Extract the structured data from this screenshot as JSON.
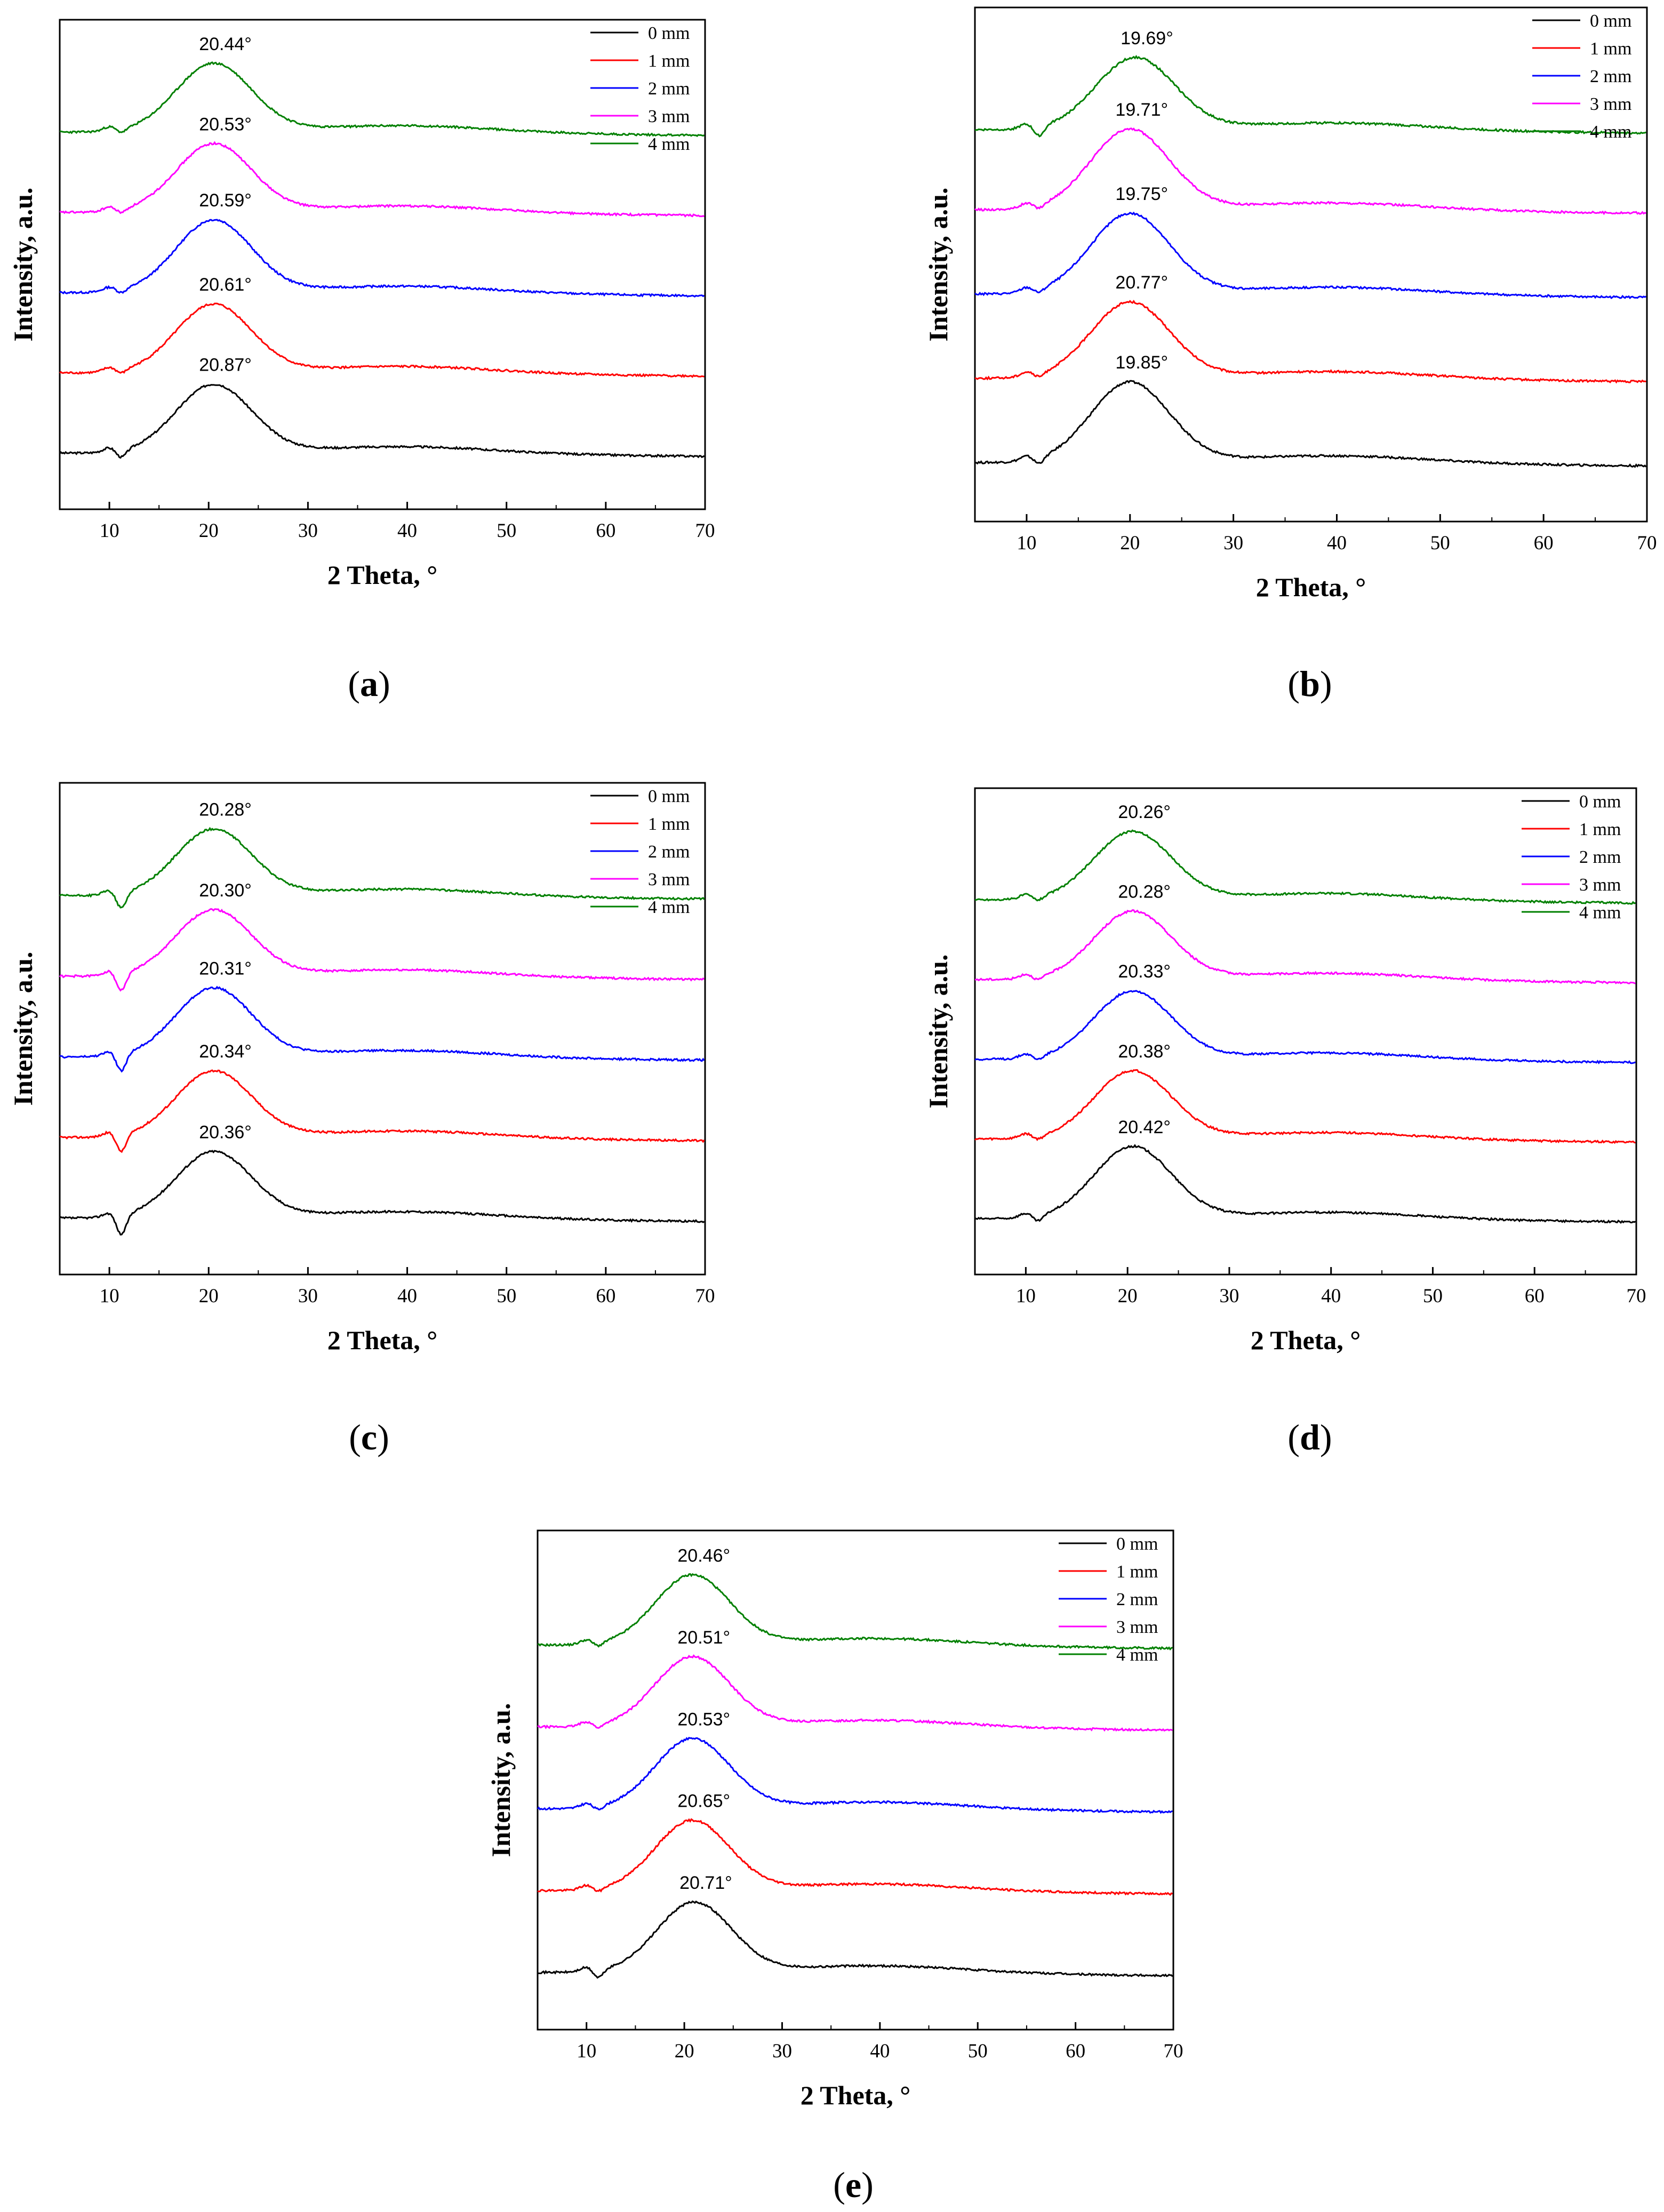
{
  "chart_data": [
    {
      "panel": "(a)",
      "type": "line",
      "xlabel": "2 Theta, °",
      "ylabel": "Intensity, a.u.",
      "xlim": [
        5,
        70
      ],
      "x_ticks": [
        10,
        20,
        30,
        40,
        50,
        60,
        70
      ],
      "legend_position": "top-right",
      "series": [
        {
          "name": "0 mm",
          "color": "#000000",
          "peak_x": 20.5,
          "peak_label": "20.87°",
          "baseline": 1.0,
          "peak_height": 0.85,
          "right_baseline": 1.0,
          "dip": 0.1
        },
        {
          "name": "1 mm",
          "color": "#ff0000",
          "peak_x": 20.5,
          "peak_label": "20.61°",
          "baseline": 2.0,
          "peak_height": 0.85,
          "right_baseline": 2.0,
          "dip": 0.05
        },
        {
          "name": "2 mm",
          "color": "#0000ff",
          "peak_x": 20.5,
          "peak_label": "20.59°",
          "baseline": 3.0,
          "peak_height": 0.9,
          "right_baseline": 3.0,
          "dip": 0.05
        },
        {
          "name": "3 mm",
          "color": "#ff00ff",
          "peak_x": 20.5,
          "peak_label": "20.53°",
          "baseline": 4.0,
          "peak_height": 0.85,
          "right_baseline": 4.0,
          "dip": 0.05
        },
        {
          "name": "4 mm",
          "color": "#008000",
          "peak_x": 20.5,
          "peak_label": "20.44°",
          "baseline": 5.0,
          "peak_height": 0.85,
          "right_baseline": 5.0,
          "dip": 0.05
        }
      ]
    },
    {
      "panel": "(b)",
      "type": "line",
      "xlabel": "2 Theta, °",
      "ylabel": "Intensity, a.u.",
      "xlim": [
        5,
        70
      ],
      "x_ticks": [
        10,
        20,
        30,
        40,
        50,
        60,
        70
      ],
      "legend_position": "top-right",
      "series": [
        {
          "name": "0 mm",
          "color": "#000000",
          "peak_x": 20.0,
          "peak_label": "19.85°",
          "baseline": 1.0,
          "peak_height": 0.95,
          "right_baseline": 1.0,
          "dip": 0.08
        },
        {
          "name": "1 mm",
          "color": "#ff0000",
          "peak_x": 20.0,
          "peak_label": "20.77°",
          "baseline": 2.0,
          "peak_height": 0.9,
          "right_baseline": 2.0,
          "dip": 0.05
        },
        {
          "name": "2 mm",
          "color": "#0000ff",
          "peak_x": 20.0,
          "peak_label": "19.75°",
          "baseline": 3.0,
          "peak_height": 0.95,
          "right_baseline": 3.0,
          "dip": 0.05
        },
        {
          "name": "3 mm",
          "color": "#ff00ff",
          "peak_x": 20.0,
          "peak_label": "19.71°",
          "baseline": 4.0,
          "peak_height": 0.95,
          "right_baseline": 4.0,
          "dip": 0.05
        },
        {
          "name": "4 mm",
          "color": "#008000",
          "peak_x": 20.5,
          "peak_label": "19.69°",
          "baseline": 4.95,
          "peak_height": 0.85,
          "right_baseline": 4.95,
          "dip": 0.12
        }
      ]
    },
    {
      "panel": "(c)",
      "type": "line",
      "xlabel": "2 Theta, °",
      "ylabel": "Intensity, a.u.",
      "xlim": [
        5,
        70
      ],
      "x_ticks": [
        10,
        20,
        30,
        40,
        50,
        60,
        70
      ],
      "legend_position": "top-right",
      "series": [
        {
          "name": "0 mm",
          "color": "#000000",
          "peak_x": 20.5,
          "peak_label": "20.36°",
          "baseline": 1.0,
          "peak_height": 0.82,
          "right_baseline": 1.0,
          "dip": 0.25
        },
        {
          "name": "1 mm",
          "color": "#ff0000",
          "peak_x": 20.5,
          "peak_label": "20.34°",
          "baseline": 2.0,
          "peak_height": 0.82,
          "right_baseline": 2.0,
          "dip": 0.22
        },
        {
          "name": "2 mm",
          "color": "#0000ff",
          "peak_x": 20.5,
          "peak_label": "20.31°",
          "baseline": 3.0,
          "peak_height": 0.85,
          "right_baseline": 3.0,
          "dip": 0.22
        },
        {
          "name": "3 mm",
          "color": "#ff00ff",
          "peak_x": 20.5,
          "peak_label": "20.30°",
          "baseline": 4.0,
          "peak_height": 0.82,
          "right_baseline": 4.0,
          "dip": 0.22
        },
        {
          "name": "4 mm",
          "color": "#008000",
          "peak_x": 20.5,
          "peak_label": "20.28°",
          "baseline": 5.0,
          "peak_height": 0.82,
          "right_baseline": 5.0,
          "dip": 0.2
        }
      ]
    },
    {
      "panel": "(d)",
      "type": "line",
      "xlabel": "2 Theta, °",
      "ylabel": "Intensity, a.u.",
      "xlim": [
        5,
        70
      ],
      "x_ticks": [
        10,
        20,
        30,
        40,
        50,
        60,
        70
      ],
      "legend_position": "top-right",
      "series": [
        {
          "name": "0 mm",
          "color": "#000000",
          "peak_x": 20.5,
          "peak_label": "20.42°",
          "baseline": 1.0,
          "peak_height": 0.9,
          "right_baseline": 1.0,
          "dip": 0.08
        },
        {
          "name": "1 mm",
          "color": "#ff0000",
          "peak_x": 20.5,
          "peak_label": "20.38°",
          "baseline": 2.0,
          "peak_height": 0.85,
          "right_baseline": 2.0,
          "dip": 0.05
        },
        {
          "name": "2 mm",
          "color": "#0000ff",
          "peak_x": 20.5,
          "peak_label": "20.33°",
          "baseline": 3.0,
          "peak_height": 0.85,
          "right_baseline": 3.0,
          "dip": 0.05
        },
        {
          "name": "3 mm",
          "color": "#ff00ff",
          "peak_x": 20.5,
          "peak_label": "20.28°",
          "baseline": 4.0,
          "peak_height": 0.85,
          "right_baseline": 4.0,
          "dip": 0.05
        },
        {
          "name": "4 mm",
          "color": "#008000",
          "peak_x": 20.5,
          "peak_label": "20.26°",
          "baseline": 5.0,
          "peak_height": 0.85,
          "right_baseline": 5.0,
          "dip": 0.05
        }
      ]
    },
    {
      "panel": "(e)",
      "type": "line",
      "xlabel": "2 Theta, °",
      "ylabel": "Intensity, a.u.",
      "xlim": [
        5,
        70
      ],
      "x_ticks": [
        10,
        20,
        30,
        40,
        50,
        60,
        70
      ],
      "legend_position": "top-right",
      "series": [
        {
          "name": "0 mm",
          "color": "#000000",
          "peak_x": 21.0,
          "peak_label": "20.71°",
          "baseline": 1.0,
          "peak_height": 0.85,
          "right_baseline": 1.0,
          "dip": 0.1
        },
        {
          "name": "1 mm",
          "color": "#ff0000",
          "peak_x": 20.8,
          "peak_label": "20.65°",
          "baseline": 2.0,
          "peak_height": 0.85,
          "right_baseline": 2.0,
          "dip": 0.05
        },
        {
          "name": "2 mm",
          "color": "#0000ff",
          "peak_x": 20.8,
          "peak_label": "20.53°",
          "baseline": 3.0,
          "peak_height": 0.85,
          "right_baseline": 3.0,
          "dip": 0.05
        },
        {
          "name": "3 mm",
          "color": "#ff00ff",
          "peak_x": 20.8,
          "peak_label": "20.51°",
          "baseline": 4.0,
          "peak_height": 0.85,
          "right_baseline": 4.0,
          "dip": 0.05
        },
        {
          "name": "4 mm",
          "color": "#008000",
          "peak_x": 20.8,
          "peak_label": "20.46°",
          "baseline": 5.0,
          "peak_height": 0.85,
          "right_baseline": 5.0,
          "dip": 0.05
        }
      ]
    }
  ]
}
